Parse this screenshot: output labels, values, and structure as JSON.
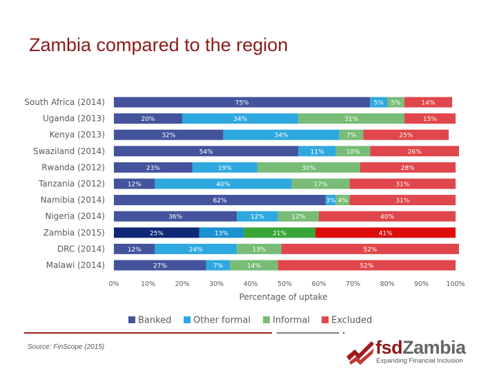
{
  "slide": {
    "title": "Zambia compared to the region"
  },
  "footer": {
    "source": "Source: FinScope (2015)"
  },
  "logo": {
    "brand_fsd": "fsd",
    "brand_name": "Zambia",
    "tagline": "Expanding Financial Inclusion"
  },
  "colors": {
    "banked": "#44549c",
    "other_formal": "#2fa8df",
    "informal": "#78bc78",
    "excluded": "#e0474c",
    "banked_highlight": "#0f2875",
    "other_formal_highlight": "#1a91d1",
    "informal_highlight": "#38a538",
    "excluded_highlight": "#dd0c0c",
    "title": "#8b1a1a",
    "rule_red": "#a01b1b",
    "rule_gray": "#7f7f7f"
  },
  "chart_data": {
    "type": "bar",
    "orientation": "horizontal",
    "stacked": true,
    "title": "",
    "xlabel": "Percentage of uptake",
    "ylabel": "",
    "xlim": [
      0,
      100
    ],
    "xticks": [
      "0%",
      "10%",
      "20%",
      "30%",
      "40%",
      "50%",
      "60%",
      "70%",
      "80%",
      "90%",
      "100%"
    ],
    "categories": [
      "South Africa (2014)",
      "Uganda (2013)",
      "Kenya (2013)",
      "Swaziland (2014)",
      "Rwanda (2012)",
      "Tanzania (2012)",
      "Namibia (2014)",
      "Nigeria (2014)",
      "Zambia (2015)",
      "DRC (2014)",
      "Malawi (2014)"
    ],
    "highlight": "Zambia (2015)",
    "series": [
      {
        "name": "Banked",
        "values": [
          75,
          20,
          32,
          54,
          23,
          12,
          62,
          36,
          25,
          12,
          27
        ]
      },
      {
        "name": "Other formal",
        "values": [
          5,
          34,
          34,
          11,
          19,
          40,
          3,
          12,
          13,
          24,
          7
        ]
      },
      {
        "name": "Informal",
        "values": [
          5,
          31,
          7,
          10,
          30,
          17,
          4,
          12,
          21,
          13,
          14
        ]
      },
      {
        "name": "Excluded",
        "values": [
          14,
          15,
          25,
          26,
          28,
          31,
          31,
          40,
          41,
          52,
          52
        ]
      }
    ],
    "legend": [
      "Banked",
      "Other formal",
      "Informal",
      "Excluded"
    ],
    "legend_position": "bottom"
  }
}
